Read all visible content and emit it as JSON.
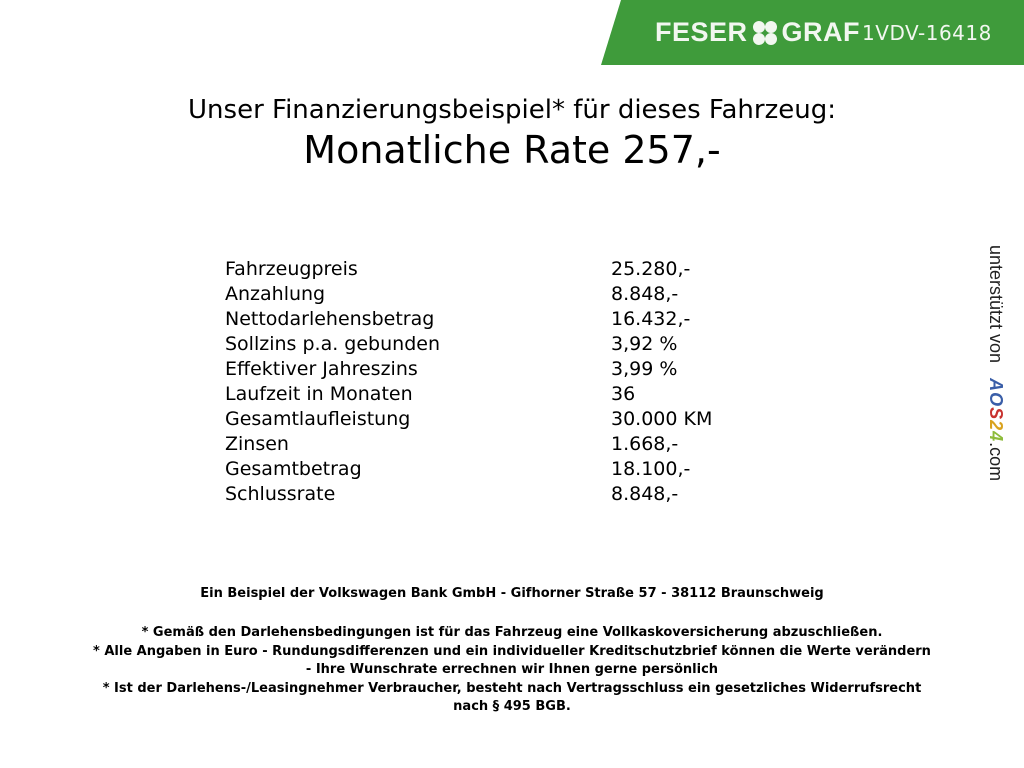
{
  "header": {
    "brand_left": "FESER",
    "brand_right": "GRAF",
    "vehicle_code": "1VDV-16418",
    "brand_color": "#3f9b3b",
    "logo_icon": "clover-icon"
  },
  "title": "Unser Finanzierungsbeispiel* für dieses Fahrzeug:",
  "monthly_rate": "Monatliche Rate 257,-",
  "rows": [
    {
      "label": "Fahrzeugpreis",
      "value": "25.280,-"
    },
    {
      "label": "Anzahlung",
      "value": "8.848,-"
    },
    {
      "label": "Nettodarlehensbetrag",
      "value": "16.432,-"
    },
    {
      "label": "Sollzins p.a. gebunden",
      "value": "3,92 %"
    },
    {
      "label": "Effektiver Jahreszins",
      "value": "3,99 %"
    },
    {
      "label": "Laufzeit in Monaten",
      "value": "36"
    },
    {
      "label": "Gesamtlaufleistung",
      "value": "30.000 KM"
    },
    {
      "label": "Zinsen",
      "value": "1.668,-"
    },
    {
      "label": "Gesamtbetrag",
      "value": "18.100,-"
    },
    {
      "label": "Schlussrate",
      "value": "8.848,-"
    }
  ],
  "bank_line": "Ein Beispiel der Volkswagen Bank GmbH - Gifhorner Straße 57 - 38112 Braunschweig",
  "notes": [
    "* Gemäß den Darlehensbedingungen ist für das Fahrzeug eine Vollkaskoversicherung abzuschließen.",
    "* Alle Angaben in Euro - Rundungsdifferenzen und ein individueller Kreditschutzbrief können die Werte verändern",
    "- Ihre Wunschrate errechnen wir Ihnen gerne persönlich",
    "* Ist der Darlehens-/Leasingnehmer Verbraucher, besteht nach Vertragsschluss ein gesetzliches Widerrufsrecht",
    "nach § 495 BGB."
  ],
  "side": {
    "prefix": "unterstützt von",
    "logo": "AOS24",
    "suffix": ".com"
  }
}
